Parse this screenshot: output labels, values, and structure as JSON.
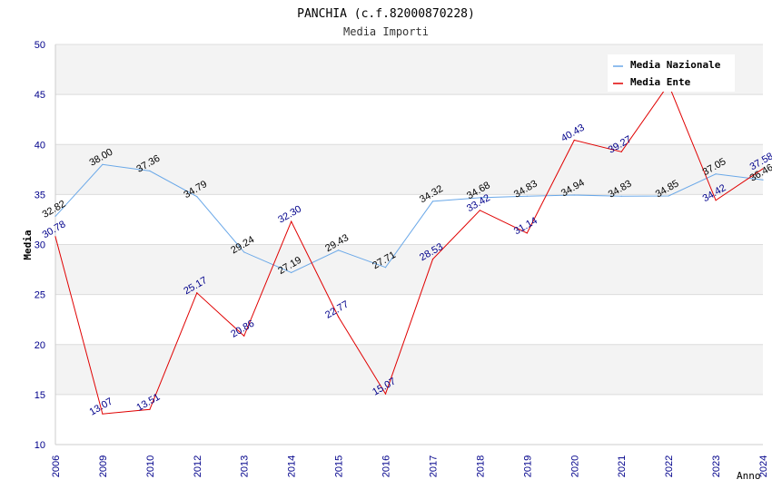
{
  "chart_data": {
    "type": "line",
    "title": "PANCHIA (c.f.82000870228)",
    "subtitle": "Media Importi",
    "xlabel": "Anno",
    "ylabel": "Media",
    "ylim": [
      10,
      50
    ],
    "yticks": [
      "10",
      "15",
      "20",
      "25",
      "30",
      "35",
      "40",
      "45",
      "50"
    ],
    "categories": [
      "2006",
      "2009",
      "2010",
      "2012",
      "2013",
      "2014",
      "2015",
      "2016",
      "2017",
      "2018",
      "2019",
      "2020",
      "2021",
      "2022",
      "2023",
      "2024"
    ],
    "series": [
      {
        "name": "Media Nazionale",
        "color": "#6aa8e8",
        "values": [
          32.82,
          38.0,
          37.36,
          34.79,
          29.24,
          27.19,
          29.43,
          27.71,
          34.32,
          34.68,
          34.83,
          34.94,
          34.83,
          34.85,
          37.05,
          36.46
        ],
        "labels": [
          "32.82",
          "38.00",
          "37.36",
          "34.79",
          "29.24",
          "27.19",
          "29.43",
          "27.71",
          "34.32",
          "34.68",
          "34.83",
          "34.94",
          "34.83",
          "34.85",
          "37.05",
          "36.46"
        ]
      },
      {
        "name": "Media Ente",
        "color": "#e00000",
        "values": [
          30.78,
          13.07,
          13.51,
          25.17,
          20.86,
          32.3,
          22.77,
          15.07,
          28.53,
          33.42,
          31.14,
          40.43,
          39.27,
          46.0,
          34.42,
          37.58
        ],
        "labels": [
          "30.78",
          "13.07",
          "13.51",
          "25.17",
          "20.86",
          "32.30",
          "22.77",
          "15.07",
          "28.53",
          "33.42",
          "31.14",
          "40.43",
          "39.27",
          "",
          "34.42",
          "37.58"
        ]
      }
    ],
    "legend": "top-right",
    "grid": true
  }
}
